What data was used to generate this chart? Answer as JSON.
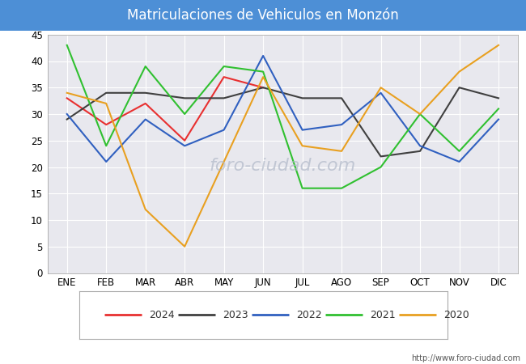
{
  "title": "Matriculaciones de Vehiculos en Monzón",
  "title_bg_color": "#4d8fd6",
  "title_text_color": "#ffffff",
  "months": [
    "ENE",
    "FEB",
    "MAR",
    "ABR",
    "MAY",
    "JUN",
    "JUL",
    "AGO",
    "SEP",
    "OCT",
    "NOV",
    "DIC"
  ],
  "series": {
    "2024": {
      "color": "#e83030",
      "data": [
        33,
        28,
        32,
        25,
        37,
        35,
        null,
        null,
        null,
        null,
        null,
        null
      ]
    },
    "2023": {
      "color": "#404040",
      "data": [
        29,
        34,
        34,
        33,
        33,
        35,
        33,
        33,
        22,
        23,
        35,
        33
      ]
    },
    "2022": {
      "color": "#3060c0",
      "data": [
        30,
        21,
        29,
        24,
        27,
        41,
        27,
        28,
        34,
        24,
        21,
        29
      ]
    },
    "2021": {
      "color": "#30c030",
      "data": [
        43,
        24,
        39,
        30,
        39,
        38,
        16,
        16,
        20,
        30,
        23,
        31
      ]
    },
    "2020": {
      "color": "#e8a020",
      "data": [
        34,
        32,
        12,
        5,
        null,
        37,
        24,
        23,
        35,
        30,
        38,
        43
      ]
    }
  },
  "ylim": [
    0,
    45
  ],
  "yticks": [
    0,
    5,
    10,
    15,
    20,
    25,
    30,
    35,
    40,
    45
  ],
  "plot_bg_color": "#e8e8ee",
  "grid_color": "#ffffff",
  "url": "http://www.foro-ciudad.com",
  "figsize": [
    6.5,
    4.5
  ],
  "dpi": 100
}
